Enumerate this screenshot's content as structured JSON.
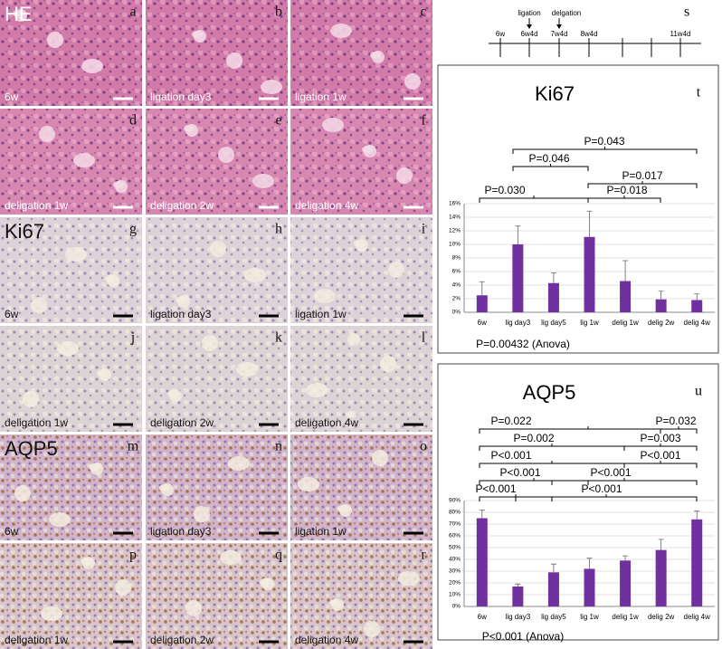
{
  "row_labels": [
    "HE",
    "Ki67",
    "AQP5"
  ],
  "panels": [
    {
      "letter": "a",
      "caption": "6w"
    },
    {
      "letter": "b",
      "caption": "ligation day3"
    },
    {
      "letter": "c",
      "caption": "ligation 1w"
    },
    {
      "letter": "d",
      "caption": "deligation 1w"
    },
    {
      "letter": "e",
      "caption": "deligation 2w"
    },
    {
      "letter": "f",
      "caption": "deligation 4w"
    },
    {
      "letter": "g",
      "caption": "6w"
    },
    {
      "letter": "h",
      "caption": "ligation day3"
    },
    {
      "letter": "i",
      "caption": "ligation 1w"
    },
    {
      "letter": "j",
      "caption": "deligation 1w"
    },
    {
      "letter": "k",
      "caption": "deligation 2w"
    },
    {
      "letter": "l",
      "caption": "deligation 4w"
    },
    {
      "letter": "m",
      "caption": "6w"
    },
    {
      "letter": "n",
      "caption": "ligation day3"
    },
    {
      "letter": "o",
      "caption": "ligation 1w"
    },
    {
      "letter": "p",
      "caption": "deligation 1w"
    },
    {
      "letter": "q",
      "caption": "deligation 2w"
    },
    {
      "letter": "r",
      "caption": "deligation 4w"
    }
  ],
  "timeline": {
    "label": "s",
    "ticks": [
      "6w",
      "6w4d",
      "7w4d",
      "8w4d",
      "11w4d"
    ],
    "events": [
      "ligation",
      "delgation"
    ]
  },
  "chart_data": [
    {
      "type": "bar",
      "label": "t",
      "title": "Ki67",
      "note": "P=0.00432 (Anova)",
      "categories": [
        "6w",
        "lig day3",
        "lig day5",
        "lig 1w",
        "delig 1w",
        "delig 2w",
        "delig 4w"
      ],
      "values": [
        2.5,
        10.0,
        4.3,
        11.1,
        4.6,
        1.9,
        1.8
      ],
      "errors": [
        2.0,
        2.7,
        1.5,
        3.8,
        3.0,
        1.2,
        0.9
      ],
      "color": "#7030a0",
      "ylim": [
        0,
        16
      ],
      "yticks": [
        {
          "value": 0,
          "label": "0%"
        },
        {
          "value": 2,
          "label": "2%"
        },
        {
          "value": 4,
          "label": "4%"
        },
        {
          "value": 6,
          "label": "6%"
        },
        {
          "value": 8,
          "label": "8%"
        },
        {
          "value": 10,
          "label": "10%"
        },
        {
          "value": 12,
          "label": "12%"
        },
        {
          "value": 14,
          "label": "14%"
        },
        {
          "value": 16,
          "label": "16%"
        }
      ],
      "grid": true,
      "annotations": [
        "P=0.043",
        "P=0.046",
        "P=0.017",
        "P=0.030",
        "P=0.018"
      ]
    },
    {
      "type": "bar",
      "label": "u",
      "title": "AQP5",
      "note": "P<0.001 (Anova)",
      "categories": [
        "6w",
        "lig day3",
        "lig day5",
        "lig 1w",
        "delig 1w",
        "delig 2w",
        "delig 4w"
      ],
      "values": [
        75,
        17,
        29,
        32,
        39,
        48,
        74
      ],
      "errors": [
        7,
        2,
        7,
        9,
        4,
        9,
        7
      ],
      "color": "#7030a0",
      "ylim": [
        0,
        90
      ],
      "yticks": [
        {
          "value": 0,
          "label": "0%"
        },
        {
          "value": 10,
          "label": "10%"
        },
        {
          "value": 20,
          "label": "20%"
        },
        {
          "value": 30,
          "label": "30%"
        },
        {
          "value": 40,
          "label": "40%"
        },
        {
          "value": 50,
          "label": "50%"
        },
        {
          "value": 60,
          "label": "60%"
        },
        {
          "value": 70,
          "label": "70%"
        },
        {
          "value": 80,
          "label": "80%"
        },
        {
          "value": 90,
          "label": "90%"
        }
      ],
      "grid": true,
      "annotations": [
        "P=0.022",
        "P=0.032",
        "P=0.002",
        "P=0.003",
        "P<0.001",
        "P<0.001",
        "P<0.001",
        "P<0.001",
        "P<0.001",
        "P<0.001"
      ]
    }
  ]
}
